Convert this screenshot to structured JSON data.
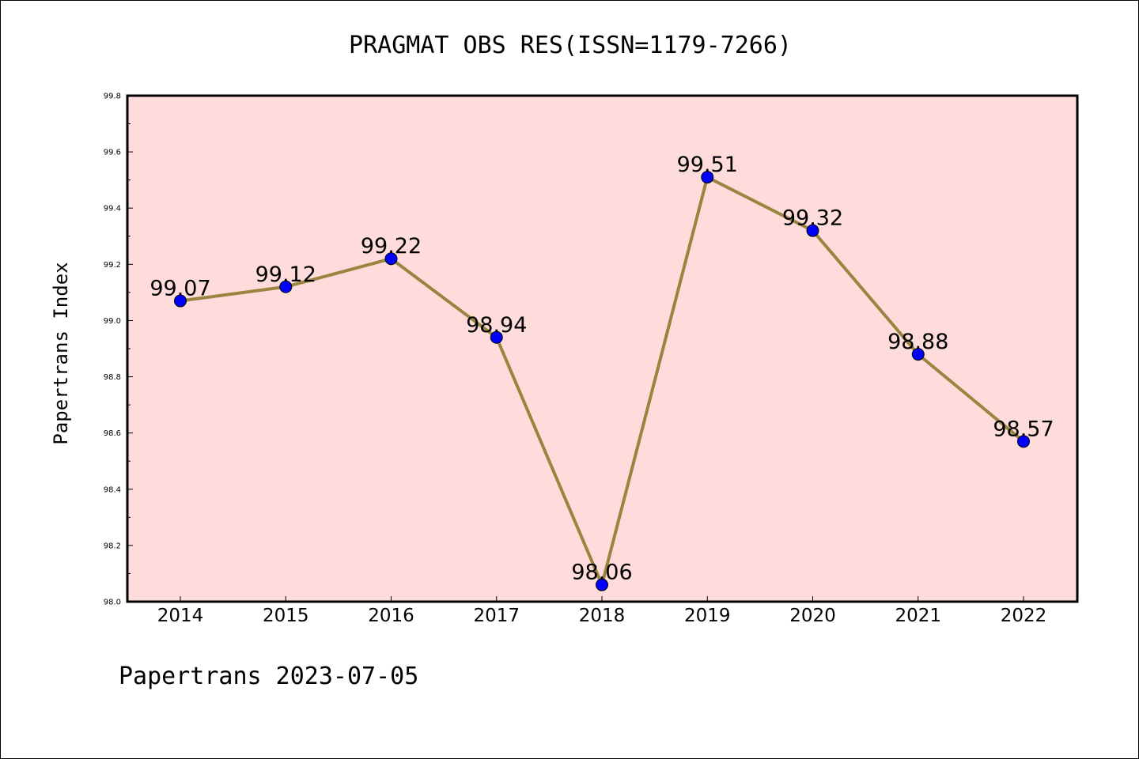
{
  "chart_data": {
    "type": "line",
    "title": "PRAGMAT OBS RES(ISSN=1179-7266)",
    "xlabel": "",
    "ylabel": "Papertrans Index",
    "categories": [
      "2014",
      "2015",
      "2016",
      "2017",
      "2018",
      "2019",
      "2020",
      "2021",
      "2022"
    ],
    "series": [
      {
        "name": "Papertrans Index",
        "values": [
          99.07,
          99.12,
          99.22,
          98.94,
          98.06,
          99.51,
          99.32,
          98.88,
          98.57
        ],
        "labels": [
          "99.07",
          "99.12",
          "99.22",
          "98.94",
          "98.06",
          "99.51",
          "99.32",
          "98.88",
          "98.57"
        ]
      }
    ],
    "ylim": [
      98.0,
      99.8
    ],
    "yticks": [
      "98.0",
      "98.2",
      "98.4",
      "98.6",
      "98.8",
      "99.0",
      "99.2",
      "99.4",
      "99.6",
      "99.8"
    ],
    "grid": false,
    "legend": "none"
  },
  "footer": {
    "text": "Papertrans 2023-07-05"
  },
  "colors": {
    "plot_background": "#fddcdb",
    "line": "#9a8540",
    "marker": "#0000ff"
  }
}
